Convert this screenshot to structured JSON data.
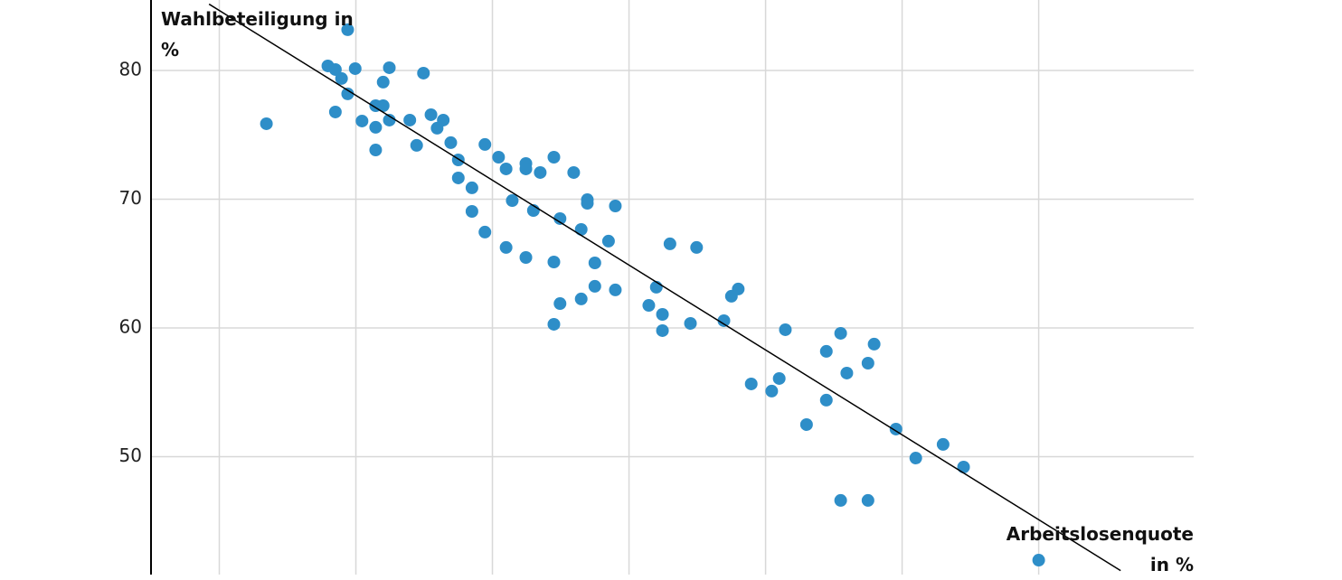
{
  "chart_data": {
    "type": "scatter",
    "y_label": "Wahlbeteiligung in %",
    "x_label": "Arbeitslosenquote in %",
    "color": "#2e8ec8",
    "x": [
      2.69,
      3.88,
      3.59,
      3.7,
      3.79,
      3.99,
      3.88,
      3.7,
      4.09,
      4.29,
      4.4,
      4.4,
      4.49,
      4.29,
      4.29,
      4.49,
      4.79,
      4.99,
      4.89,
      5.1,
      5.28,
      5.19,
      5.39,
      5.5,
      5.5,
      5.7,
      5.7,
      5.89,
      5.89,
      6.09,
      6.2,
      6.29,
      6.2,
      6.49,
      6.49,
      6.7,
      6.6,
      6.49,
      6.9,
      6.9,
      6.9,
      6.99,
      6.99,
      7.19,
      7.3,
      7.3,
      7.39,
      7.39,
      7.5,
      7.5,
      7.7,
      7.8,
      7.8,
      8.29,
      8.4,
      8.49,
      8.49,
      8.6,
      8.9,
      8.99,
      9.39,
      9.5,
      9.6,
      9.79,
      10.09,
      10.2,
      10.29,
      10.6,
      10.89,
      10.89,
      11.1,
      11.19,
      11.5,
      11.59,
      11.1,
      11.5,
      11.91,
      12.2,
      12.6,
      12.9,
      14.0
    ],
    "values": [
      75.86,
      83.16,
      80.35,
      80.07,
      79.37,
      80.14,
      78.18,
      76.77,
      76.07,
      77.26,
      77.26,
      79.09,
      80.21,
      75.58,
      73.82,
      76.14,
      76.14,
      79.79,
      74.18,
      76.56,
      76.14,
      75.51,
      74.39,
      73.05,
      71.65,
      70.88,
      69.05,
      74.25,
      67.44,
      73.26,
      72.35,
      69.89,
      66.25,
      72.77,
      72.35,
      72.07,
      69.12,
      65.47,
      73.26,
      65.12,
      60.28,
      68.49,
      61.89,
      72.07,
      67.65,
      62.25,
      69.96,
      69.68,
      65.05,
      63.23,
      66.74,
      69.47,
      62.95,
      61.75,
      63.16,
      61.05,
      59.79,
      66.53,
      60.35,
      66.25,
      60.56,
      62.46,
      63.02,
      55.65,
      55.09,
      56.07,
      59.86,
      52.49,
      58.18,
      54.39,
      59.58,
      56.49,
      57.26,
      58.74,
      46.6,
      46.6,
      52.14,
      49.89,
      50.95,
      49.19,
      41.96
    ],
    "trendline": {
      "x": [
        1.85,
        15.2
      ],
      "values": [
        85.15,
        41.15
      ]
    },
    "xlim": [
      1,
      16.27
    ],
    "xticks": [
      2,
      4,
      6,
      8,
      10,
      12,
      14
    ],
    "ylim": [
      40.84,
      85.47
    ],
    "yticks": [
      50,
      60,
      70,
      80
    ],
    "grid": true
  }
}
